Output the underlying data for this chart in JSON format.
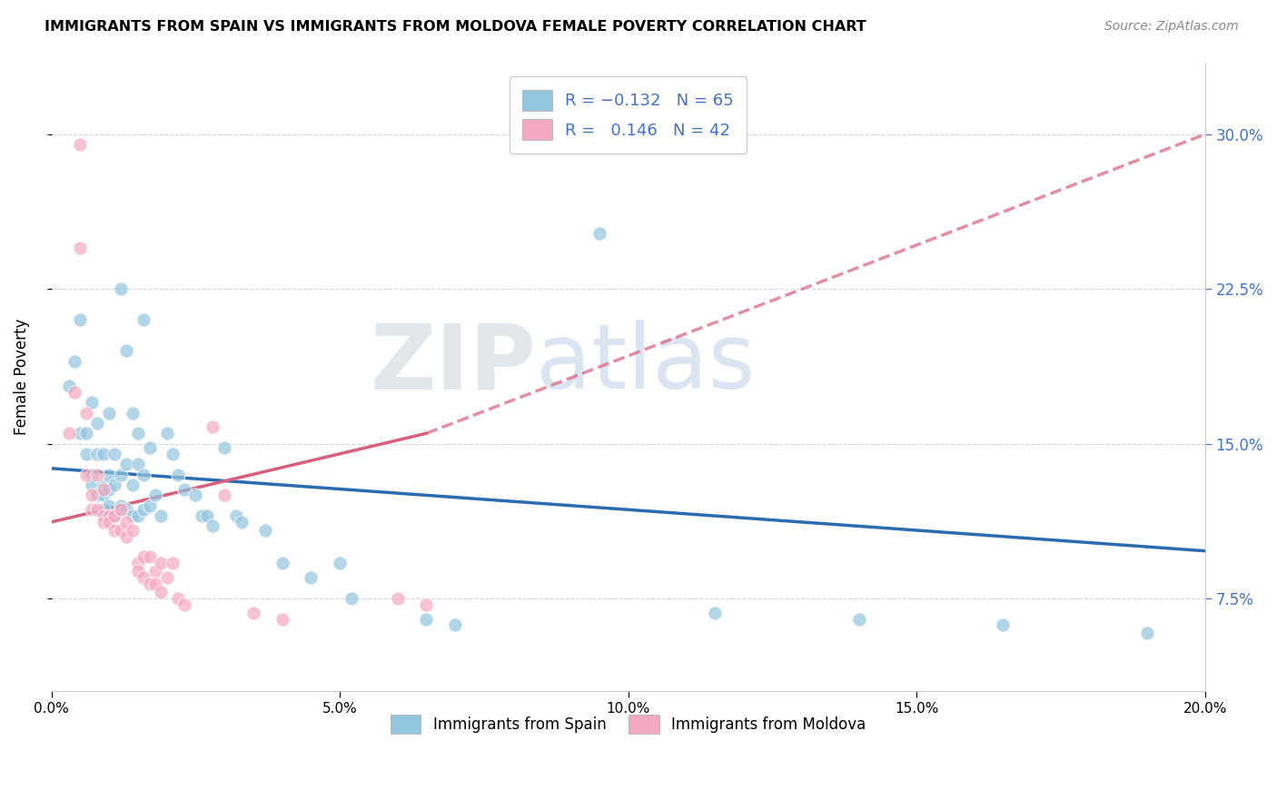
{
  "title": "IMMIGRANTS FROM SPAIN VS IMMIGRANTS FROM MOLDOVA FEMALE POVERTY CORRELATION CHART",
  "source": "Source: ZipAtlas.com",
  "ylabel": "Female Poverty",
  "ytick_values": [
    0.075,
    0.15,
    0.225,
    0.3
  ],
  "xlim": [
    0.0,
    0.2
  ],
  "ylim": [
    0.03,
    0.335
  ],
  "xtick_values": [
    0.0,
    0.05,
    0.1,
    0.15,
    0.2
  ],
  "spain_color": "#92c5de",
  "moldova_color": "#f4a9c0",
  "spain_line_color": "#2b6cb0",
  "moldova_line_color": "#d6607e",
  "watermark_zip": "ZIP",
  "watermark_atlas": "atlas",
  "spain_r": -0.132,
  "moldova_r": 0.146,
  "spain_n": 65,
  "moldova_n": 42,
  "spain_scatter": [
    [
      0.003,
      0.178
    ],
    [
      0.004,
      0.19
    ],
    [
      0.005,
      0.21
    ],
    [
      0.005,
      0.155
    ],
    [
      0.006,
      0.155
    ],
    [
      0.006,
      0.145
    ],
    [
      0.007,
      0.17
    ],
    [
      0.007,
      0.135
    ],
    [
      0.007,
      0.13
    ],
    [
      0.008,
      0.16
    ],
    [
      0.008,
      0.145
    ],
    [
      0.008,
      0.125
    ],
    [
      0.009,
      0.145
    ],
    [
      0.009,
      0.13
    ],
    [
      0.009,
      0.125
    ],
    [
      0.009,
      0.118
    ],
    [
      0.01,
      0.165
    ],
    [
      0.01,
      0.135
    ],
    [
      0.01,
      0.128
    ],
    [
      0.01,
      0.12
    ],
    [
      0.011,
      0.145
    ],
    [
      0.011,
      0.13
    ],
    [
      0.011,
      0.115
    ],
    [
      0.012,
      0.225
    ],
    [
      0.012,
      0.135
    ],
    [
      0.012,
      0.12
    ],
    [
      0.013,
      0.195
    ],
    [
      0.013,
      0.14
    ],
    [
      0.013,
      0.118
    ],
    [
      0.014,
      0.165
    ],
    [
      0.014,
      0.13
    ],
    [
      0.014,
      0.115
    ],
    [
      0.015,
      0.155
    ],
    [
      0.015,
      0.14
    ],
    [
      0.015,
      0.115
    ],
    [
      0.016,
      0.21
    ],
    [
      0.016,
      0.135
    ],
    [
      0.016,
      0.118
    ],
    [
      0.017,
      0.148
    ],
    [
      0.017,
      0.12
    ],
    [
      0.018,
      0.125
    ],
    [
      0.019,
      0.115
    ],
    [
      0.02,
      0.155
    ],
    [
      0.021,
      0.145
    ],
    [
      0.022,
      0.135
    ],
    [
      0.023,
      0.128
    ],
    [
      0.025,
      0.125
    ],
    [
      0.026,
      0.115
    ],
    [
      0.027,
      0.115
    ],
    [
      0.028,
      0.11
    ],
    [
      0.03,
      0.148
    ],
    [
      0.032,
      0.115
    ],
    [
      0.033,
      0.112
    ],
    [
      0.037,
      0.108
    ],
    [
      0.04,
      0.092
    ],
    [
      0.045,
      0.085
    ],
    [
      0.05,
      0.092
    ],
    [
      0.052,
      0.075
    ],
    [
      0.065,
      0.065
    ],
    [
      0.07,
      0.062
    ],
    [
      0.095,
      0.252
    ],
    [
      0.115,
      0.068
    ],
    [
      0.14,
      0.065
    ],
    [
      0.165,
      0.062
    ],
    [
      0.19,
      0.058
    ]
  ],
  "moldova_scatter": [
    [
      0.003,
      0.155
    ],
    [
      0.004,
      0.175
    ],
    [
      0.005,
      0.295
    ],
    [
      0.005,
      0.245
    ],
    [
      0.006,
      0.135
    ],
    [
      0.006,
      0.165
    ],
    [
      0.007,
      0.125
    ],
    [
      0.007,
      0.118
    ],
    [
      0.008,
      0.135
    ],
    [
      0.008,
      0.118
    ],
    [
      0.009,
      0.128
    ],
    [
      0.009,
      0.115
    ],
    [
      0.009,
      0.112
    ],
    [
      0.01,
      0.115
    ],
    [
      0.01,
      0.112
    ],
    [
      0.011,
      0.115
    ],
    [
      0.011,
      0.108
    ],
    [
      0.012,
      0.118
    ],
    [
      0.012,
      0.108
    ],
    [
      0.013,
      0.112
    ],
    [
      0.013,
      0.105
    ],
    [
      0.014,
      0.108
    ],
    [
      0.015,
      0.092
    ],
    [
      0.015,
      0.088
    ],
    [
      0.016,
      0.095
    ],
    [
      0.016,
      0.085
    ],
    [
      0.017,
      0.095
    ],
    [
      0.017,
      0.082
    ],
    [
      0.018,
      0.088
    ],
    [
      0.018,
      0.082
    ],
    [
      0.019,
      0.092
    ],
    [
      0.019,
      0.078
    ],
    [
      0.02,
      0.085
    ],
    [
      0.021,
      0.092
    ],
    [
      0.022,
      0.075
    ],
    [
      0.023,
      0.072
    ],
    [
      0.028,
      0.158
    ],
    [
      0.03,
      0.125
    ],
    [
      0.035,
      0.068
    ],
    [
      0.04,
      0.065
    ],
    [
      0.06,
      0.075
    ],
    [
      0.065,
      0.072
    ]
  ]
}
